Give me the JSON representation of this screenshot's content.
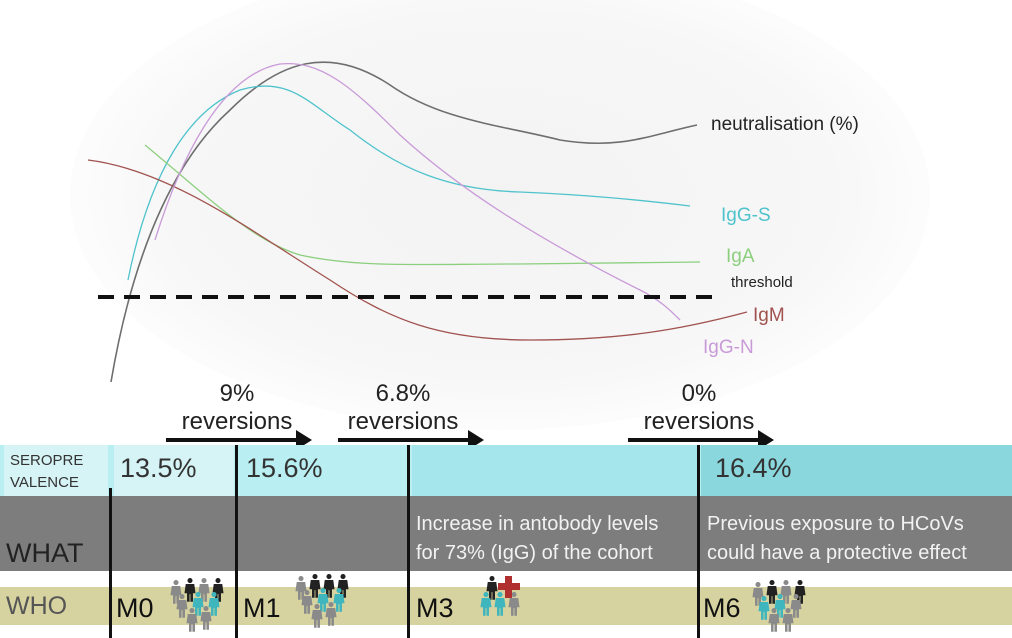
{
  "curve_labels": {
    "neutralisation": "neutralisation (%)",
    "igg_s": "IgG-S",
    "iga": "IgA",
    "threshold": "threshold",
    "igm": "IgM",
    "igg_n": "IgG-N"
  },
  "colors": {
    "neutralisation": "#6e6e6e",
    "igg_s": "#4fc3cc",
    "iga": "#8ccf7e",
    "igm": "#a0524e",
    "igg_n": "#c99ad8",
    "seroprevalence_light": "#d6f3f5",
    "seroprevalence_mid": "#b9eef2",
    "seroprevalence_dark": "#8ad8de",
    "what_row": "#7d7d7d",
    "who_row": "#d6d3a0",
    "person_dark": "#222222",
    "person_grey": "#8a8a8a",
    "person_teal": "#3fb5bd",
    "plus": "#b03030"
  },
  "reversions": [
    {
      "pct": "9%",
      "label": "reversions"
    },
    {
      "pct": "6.8%",
      "label": "reversions"
    },
    {
      "pct": "0%",
      "label": "reversions"
    }
  ],
  "rows": {
    "seroprevalence_label_line1": "SEROPRE",
    "seroprevalence_label_line2": "VALENCE",
    "what_label": "WHAT",
    "who_label": "WHO"
  },
  "seroprevalence": {
    "m0": "13.5%",
    "m1": "15.6%",
    "m6": "16.4%"
  },
  "what": {
    "m3_line1": "Increase in antobody levels",
    "m3_line2": "for 73% (IgG) of the cohort",
    "m6_line1": "Previous exposure to HCoVs",
    "m6_line2": "could have a  protective effect"
  },
  "months": [
    "M0",
    "M1",
    "M3",
    "M6"
  ],
  "icons": {
    "people": "people-group-icon",
    "plus": "red-cross-icon"
  }
}
